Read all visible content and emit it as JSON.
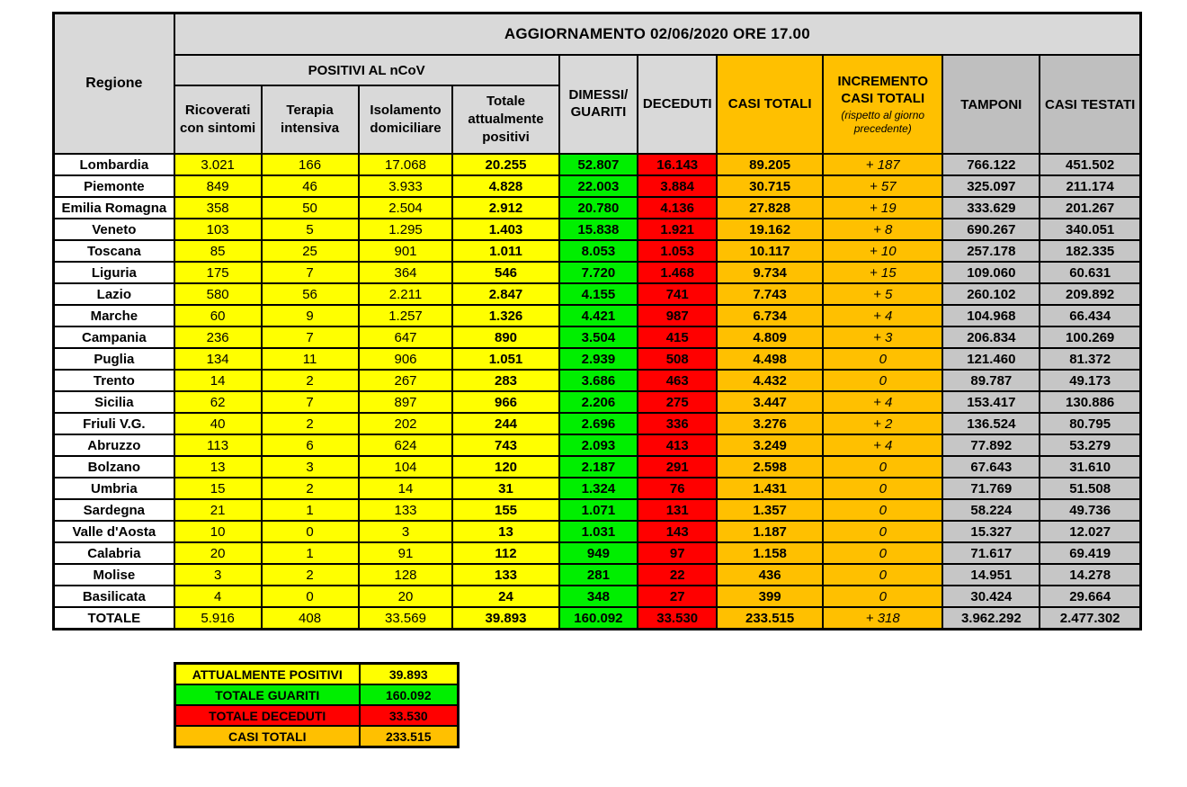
{
  "title": "AGGIORNAMENTO 02/06/2020 ORE 17.00",
  "colors": {
    "yellow": "#FFFF00",
    "green": "#00EF00",
    "red": "#FF0000",
    "orange": "#FFC000",
    "header_gray": "#D9D9D9",
    "dark_gray": "#BFBFBF"
  },
  "table": {
    "headers": {
      "region": "Regione",
      "positivi_group": "POSITIVI AL nCoV",
      "ricoverati": "Ricoverati con sintomi",
      "terapia": "Terapia intensiva",
      "isolamento": "Isolamento domiciliare",
      "totale_positivi": "Totale attualmente positivi",
      "guariti": "DIMESSI/ GUARITI",
      "deceduti": "DECEDUTI",
      "casi_totali": "CASI TOTALI",
      "incremento": "INCREMENTO CASI  TOTALI",
      "incremento_note": "(rispetto al giorno precedente)",
      "tamponi": "TAMPONI",
      "casi_testati": "CASI TESTATI"
    },
    "rows": [
      {
        "region": "Lombardia",
        "values": [
          "3.021",
          "166",
          "17.068",
          "20.255",
          "52.807",
          "16.143",
          "89.205",
          "+ 187",
          "766.122",
          "451.502"
        ]
      },
      {
        "region": "Piemonte",
        "values": [
          "849",
          "46",
          "3.933",
          "4.828",
          "22.003",
          "3.884",
          "30.715",
          "+ 57",
          "325.097",
          "211.174"
        ]
      },
      {
        "region": "Emilia Romagna",
        "values": [
          "358",
          "50",
          "2.504",
          "2.912",
          "20.780",
          "4.136",
          "27.828",
          "+ 19",
          "333.629",
          "201.267"
        ]
      },
      {
        "region": "Veneto",
        "values": [
          "103",
          "5",
          "1.295",
          "1.403",
          "15.838",
          "1.921",
          "19.162",
          "+ 8",
          "690.267",
          "340.051"
        ]
      },
      {
        "region": "Toscana",
        "values": [
          "85",
          "25",
          "901",
          "1.011",
          "8.053",
          "1.053",
          "10.117",
          "+ 10",
          "257.178",
          "182.335"
        ]
      },
      {
        "region": "Liguria",
        "values": [
          "175",
          "7",
          "364",
          "546",
          "7.720",
          "1.468",
          "9.734",
          "+ 15",
          "109.060",
          "60.631"
        ]
      },
      {
        "region": "Lazio",
        "values": [
          "580",
          "56",
          "2.211",
          "2.847",
          "4.155",
          "741",
          "7.743",
          "+ 5",
          "260.102",
          "209.892"
        ]
      },
      {
        "region": "Marche",
        "values": [
          "60",
          "9",
          "1.257",
          "1.326",
          "4.421",
          "987",
          "6.734",
          "+ 4",
          "104.968",
          "66.434"
        ]
      },
      {
        "region": "Campania",
        "values": [
          "236",
          "7",
          "647",
          "890",
          "3.504",
          "415",
          "4.809",
          "+ 3",
          "206.834",
          "100.269"
        ]
      },
      {
        "region": "Puglia",
        "values": [
          "134",
          "11",
          "906",
          "1.051",
          "2.939",
          "508",
          "4.498",
          "0",
          "121.460",
          "81.372"
        ]
      },
      {
        "region": "Trento",
        "values": [
          "14",
          "2",
          "267",
          "283",
          "3.686",
          "463",
          "4.432",
          "0",
          "89.787",
          "49.173"
        ]
      },
      {
        "region": "Sicilia",
        "values": [
          "62",
          "7",
          "897",
          "966",
          "2.206",
          "275",
          "3.447",
          "+ 4",
          "153.417",
          "130.886"
        ]
      },
      {
        "region": "Friuli V.G.",
        "values": [
          "40",
          "2",
          "202",
          "244",
          "2.696",
          "336",
          "3.276",
          "+ 2",
          "136.524",
          "80.795"
        ]
      },
      {
        "region": "Abruzzo",
        "values": [
          "113",
          "6",
          "624",
          "743",
          "2.093",
          "413",
          "3.249",
          "+ 4",
          "77.892",
          "53.279"
        ]
      },
      {
        "region": "Bolzano",
        "values": [
          "13",
          "3",
          "104",
          "120",
          "2.187",
          "291",
          "2.598",
          "0",
          "67.643",
          "31.610"
        ]
      },
      {
        "region": "Umbria",
        "values": [
          "15",
          "2",
          "14",
          "31",
          "1.324",
          "76",
          "1.431",
          "0",
          "71.769",
          "51.508"
        ]
      },
      {
        "region": "Sardegna",
        "values": [
          "21",
          "1",
          "133",
          "155",
          "1.071",
          "131",
          "1.357",
          "0",
          "58.224",
          "49.736"
        ]
      },
      {
        "region": "Valle d'Aosta",
        "values": [
          "10",
          "0",
          "3",
          "13",
          "1.031",
          "143",
          "1.187",
          "0",
          "15.327",
          "12.027"
        ]
      },
      {
        "region": "Calabria",
        "values": [
          "20",
          "1",
          "91",
          "112",
          "949",
          "97",
          "1.158",
          "0",
          "71.617",
          "69.419"
        ]
      },
      {
        "region": "Molise",
        "values": [
          "3",
          "2",
          "128",
          "133",
          "281",
          "22",
          "436",
          "0",
          "14.951",
          "14.278"
        ]
      },
      {
        "region": "Basilicata",
        "values": [
          "4",
          "0",
          "20",
          "24",
          "348",
          "27",
          "399",
          "0",
          "30.424",
          "29.664"
        ]
      }
    ],
    "total_row": {
      "region": "TOTALE",
      "values": [
        "5.916",
        "408",
        "33.569",
        "39.893",
        "160.092",
        "33.530",
        "233.515",
        "+ 318",
        "3.962.292",
        "2.477.302"
      ]
    }
  },
  "summary": {
    "rows": [
      {
        "label": "ATTUALMENTE POSITIVI",
        "value": "39.893",
        "color": "yellow"
      },
      {
        "label": "TOTALE GUARITI",
        "value": "160.092",
        "color": "green"
      },
      {
        "label": "TOTALE DECEDUTI",
        "value": "33.530",
        "color": "red"
      },
      {
        "label": "CASI TOTALI",
        "value": "233.515",
        "color": "orange"
      }
    ]
  }
}
